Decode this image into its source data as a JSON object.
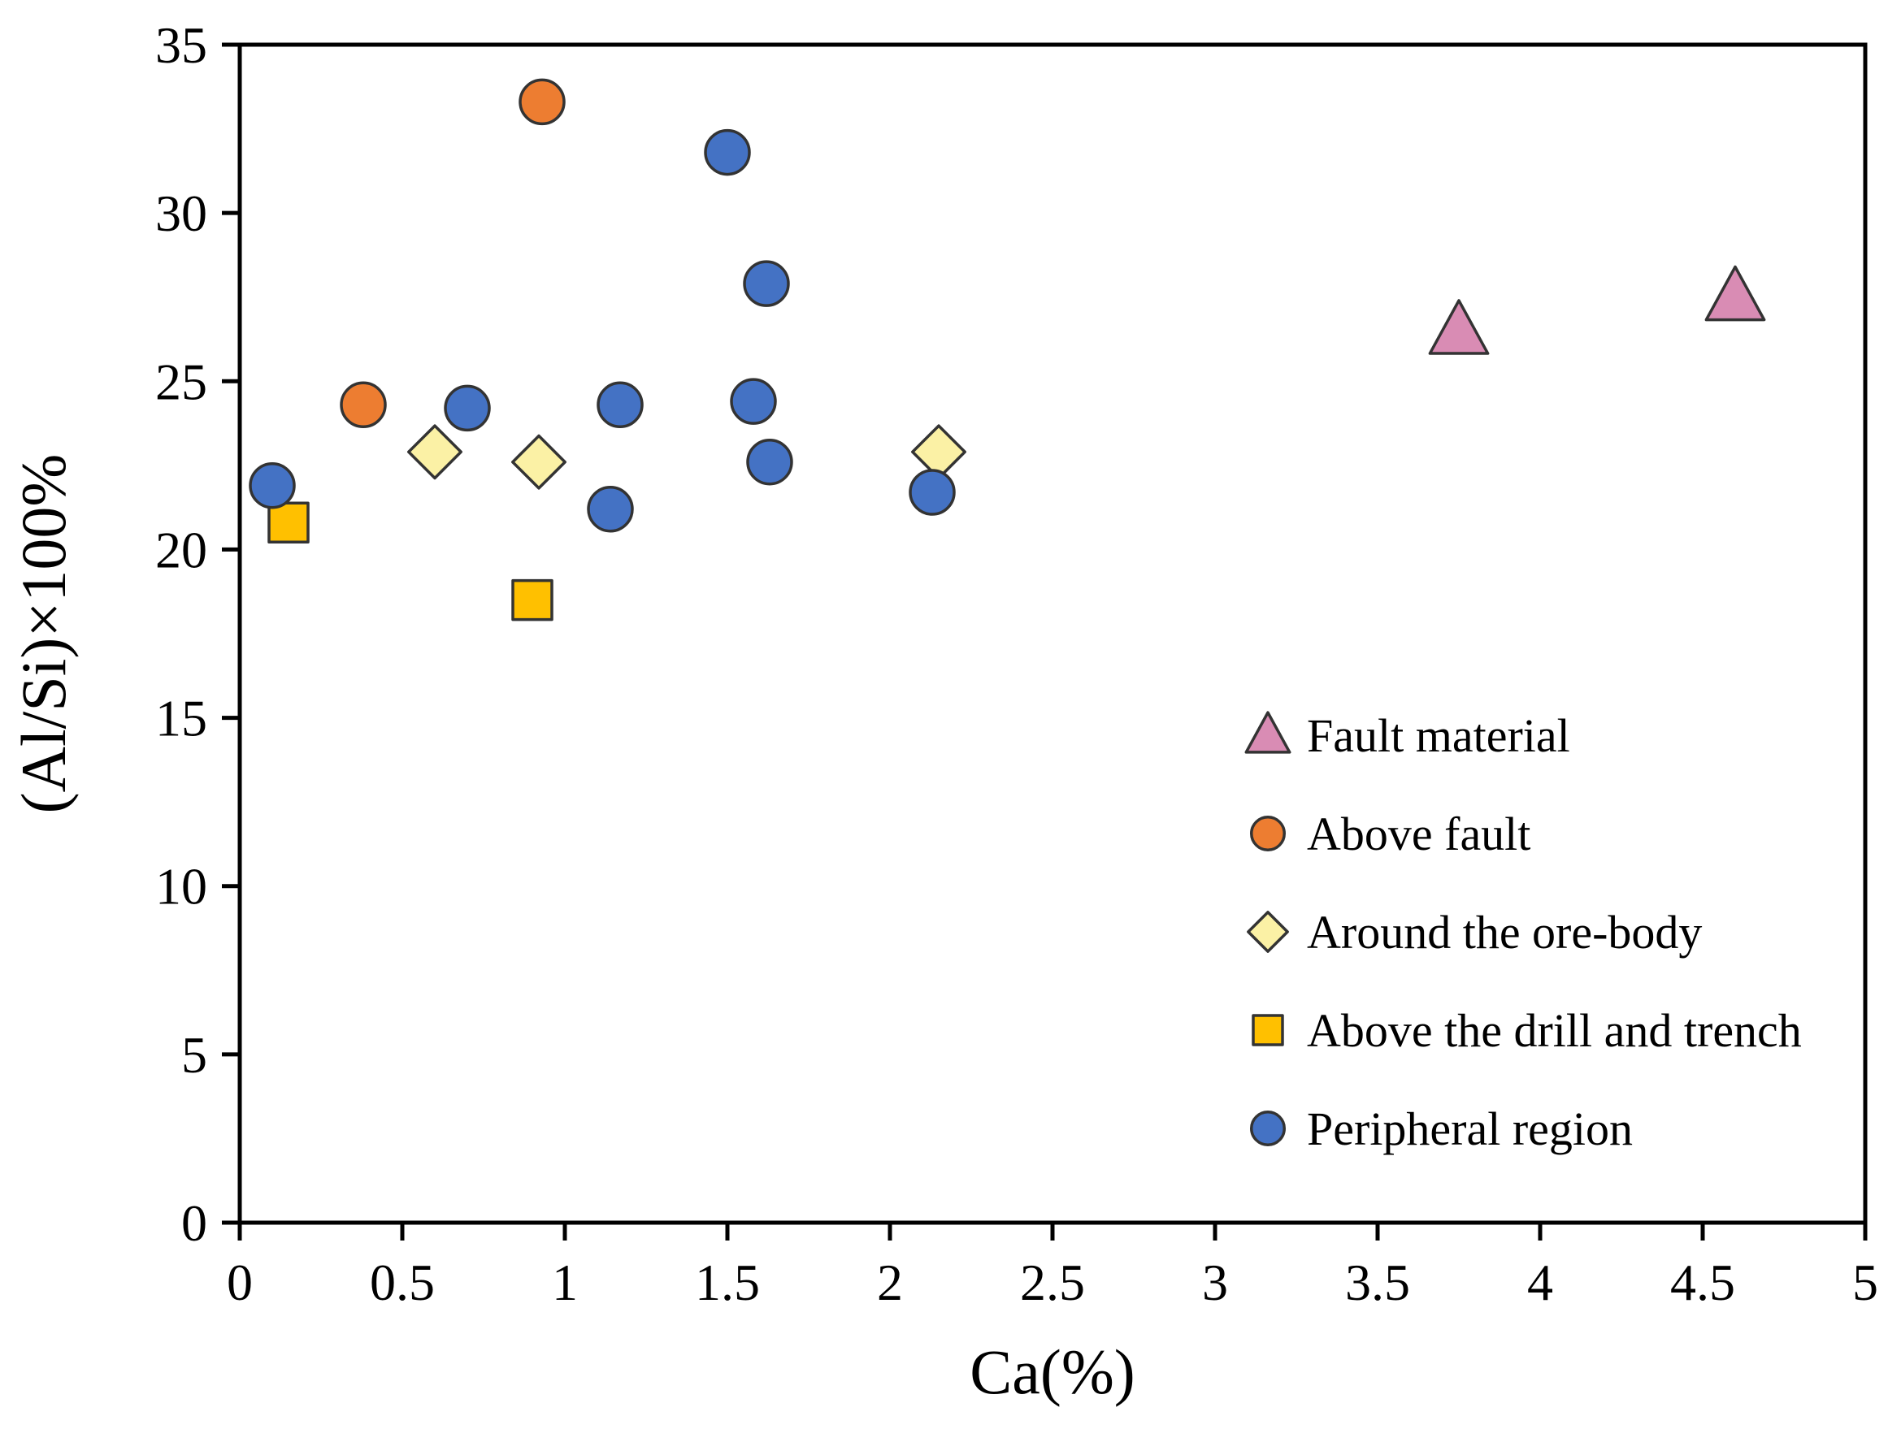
{
  "chart_data": {
    "type": "scatter",
    "title": "",
    "xlabel": "Ca(%)",
    "ylabel": "(Al/Si)×100%",
    "xlim": [
      0,
      5
    ],
    "ylim": [
      0,
      35
    ],
    "xticks": [
      0,
      0.5,
      1,
      1.5,
      2,
      2.5,
      3,
      3.5,
      4,
      4.5,
      5
    ],
    "yticks": [
      0,
      5,
      10,
      15,
      20,
      25,
      30,
      35
    ],
    "grid": false,
    "legend_position": "inside-right",
    "frame_color": "#000000",
    "series": [
      {
        "name": "Fault material",
        "marker": "triangle",
        "fill": "#D98CB4",
        "stroke": "#333333",
        "points": [
          [
            3.75,
            26.5
          ],
          [
            4.6,
            27.5
          ]
        ]
      },
      {
        "name": "Above fault",
        "marker": "circle",
        "fill": "#ED7D31",
        "stroke": "#333333",
        "points": [
          [
            0.38,
            24.3
          ],
          [
            0.93,
            33.3
          ]
        ]
      },
      {
        "name": "Around the ore-body",
        "marker": "diamond",
        "fill": "#FBF1A5",
        "stroke": "#333333",
        "points": [
          [
            0.6,
            22.9
          ],
          [
            0.92,
            22.6
          ],
          [
            2.15,
            22.9
          ]
        ]
      },
      {
        "name": "Above the drill and trench",
        "marker": "square",
        "fill": "#FFC000",
        "stroke": "#333333",
        "points": [
          [
            0.15,
            20.8
          ],
          [
            0.9,
            18.5
          ]
        ]
      },
      {
        "name": "Peripheral region",
        "marker": "circle",
        "fill": "#4472C4",
        "stroke": "#333333",
        "points": [
          [
            0.1,
            21.9
          ],
          [
            0.7,
            24.2
          ],
          [
            1.17,
            24.3
          ],
          [
            1.14,
            21.2
          ],
          [
            1.5,
            31.8
          ],
          [
            1.62,
            27.9
          ],
          [
            1.58,
            24.4
          ],
          [
            1.63,
            22.6
          ],
          [
            2.13,
            21.7
          ]
        ]
      }
    ]
  }
}
